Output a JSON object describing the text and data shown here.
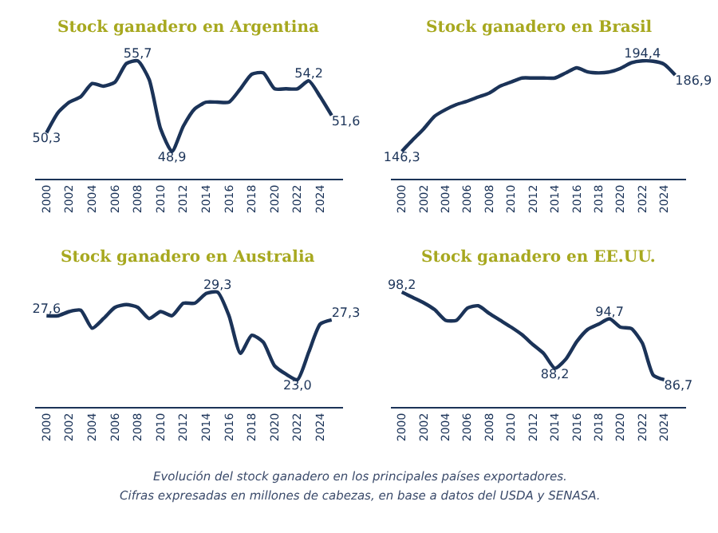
{
  "chart_data": [
    {
      "type": "line",
      "title": "Stock ganadero en Argentina",
      "annotations": [
        "Evolución del stock ganadero en los principales países exportadores.",
        "Cifras expresadas en millones de cabezas, en base a datos del USDA y SENASA."
      ],
      "xlim": [
        1999,
        2026
      ],
      "xticks": [
        2000,
        2002,
        2004,
        2006,
        2008,
        2010,
        2012,
        2014,
        2016,
        2018,
        2020,
        2022,
        2024
      ],
      "tick_labels": "x",
      "marker": "none",
      "line_style": "solid",
      "series": [
        {
          "color": "#1b3358",
          "x": [
            2000,
            2001,
            2002,
            2003,
            2004,
            2005,
            2006,
            2007,
            2008,
            2009,
            2010,
            2011,
            2012,
            2013,
            2014,
            2015,
            2016,
            2017,
            2018,
            2019,
            2020,
            2021,
            2022,
            2023,
            2024,
            2025
          ],
          "values": [
            50.3,
            51.8,
            52.6,
            53.0,
            54.0,
            53.8,
            54.1,
            55.5,
            55.7,
            54.3,
            50.6,
            48.9,
            50.8,
            52.1,
            52.6,
            52.6,
            52.6,
            53.6,
            54.7,
            54.8,
            53.6,
            53.6,
            53.6,
            54.2,
            53.0,
            51.6
          ],
          "value_labels": [
            "50,3",
            null,
            null,
            null,
            null,
            null,
            null,
            null,
            "55,7",
            null,
            null,
            "48,9",
            null,
            null,
            null,
            null,
            null,
            null,
            null,
            null,
            null,
            null,
            null,
            "54,2",
            null,
            "51,6"
          ]
        }
      ]
    },
    {
      "type": "line",
      "title": "Stock ganadero en Brasil",
      "xlim": [
        1999,
        2026
      ],
      "xticks": [
        2000,
        2002,
        2004,
        2006,
        2008,
        2010,
        2012,
        2014,
        2016,
        2018,
        2020,
        2022,
        2024
      ],
      "tick_labels": "x",
      "marker": "none",
      "line_style": "solid",
      "series": [
        {
          "color": "#1b3358",
          "x": [
            2000,
            2001,
            2002,
            2003,
            2004,
            2005,
            2006,
            2007,
            2008,
            2009,
            2010,
            2011,
            2012,
            2013,
            2014,
            2015,
            2016,
            2017,
            2018,
            2019,
            2020,
            2021,
            2022,
            2023,
            2024,
            2025
          ],
          "values": [
            146.3,
            152.4,
            158.3,
            165.0,
            168.5,
            171.2,
            173.0,
            175.2,
            177.3,
            181.0,
            183.2,
            185.3,
            185.3,
            185.3,
            185.3,
            188.0,
            190.7,
            188.5,
            188.0,
            188.5,
            190.4,
            193.4,
            194.4,
            194.2,
            192.6,
            186.9
          ],
          "value_labels": [
            "146,3",
            null,
            null,
            null,
            null,
            null,
            null,
            null,
            null,
            null,
            null,
            null,
            null,
            null,
            null,
            null,
            null,
            null,
            null,
            null,
            null,
            null,
            "194,4",
            null,
            null,
            "186,9"
          ]
        }
      ]
    },
    {
      "type": "line",
      "title": "Stock ganadero en Australia",
      "xlim": [
        1999,
        2026
      ],
      "xticks": [
        2000,
        2002,
        2004,
        2006,
        2008,
        2010,
        2012,
        2014,
        2016,
        2018,
        2020,
        2022,
        2024
      ],
      "tick_labels": "x",
      "marker": "none",
      "line_style": "solid",
      "series": [
        {
          "color": "#1b3358",
          "x": [
            2000,
            2001,
            2002,
            2003,
            2004,
            2005,
            2006,
            2007,
            2008,
            2009,
            2010,
            2011,
            2012,
            2013,
            2014,
            2015,
            2016,
            2017,
            2018,
            2019,
            2020,
            2021,
            2022,
            2023,
            2024,
            2025
          ],
          "values": [
            27.6,
            27.6,
            27.9,
            28.0,
            26.7,
            27.4,
            28.2,
            28.4,
            28.2,
            27.4,
            27.9,
            27.6,
            28.5,
            28.5,
            29.2,
            29.3,
            27.6,
            24.9,
            26.2,
            25.7,
            24.0,
            23.4,
            23.0,
            25.0,
            27.0,
            27.3
          ],
          "value_labels": [
            "27,6",
            null,
            null,
            null,
            null,
            null,
            null,
            null,
            null,
            null,
            null,
            null,
            null,
            null,
            null,
            "29,3",
            null,
            null,
            null,
            null,
            null,
            null,
            "23,0",
            null,
            null,
            "27,3"
          ]
        }
      ]
    },
    {
      "type": "line",
      "title": "Stock ganadero en EE.UU.",
      "xlim": [
        1999,
        2026
      ],
      "xticks": [
        2000,
        2002,
        2004,
        2006,
        2008,
        2010,
        2012,
        2014,
        2016,
        2018,
        2020,
        2022,
        2024
      ],
      "tick_labels": "x",
      "marker": "none",
      "line_style": "solid",
      "series": [
        {
          "color": "#1b3358",
          "x": [
            2000,
            2001,
            2002,
            2003,
            2004,
            2005,
            2006,
            2007,
            2008,
            2009,
            2010,
            2011,
            2012,
            2013,
            2014,
            2015,
            2016,
            2017,
            2018,
            2019,
            2020,
            2021,
            2022,
            2023,
            2024
          ],
          "values": [
            98.2,
            97.5,
            96.8,
            95.9,
            94.5,
            94.5,
            96.1,
            96.4,
            95.4,
            94.5,
            93.6,
            92.6,
            91.3,
            90.1,
            88.2,
            89.4,
            91.7,
            93.3,
            94.0,
            94.7,
            93.6,
            93.4,
            91.5,
            87.3,
            86.7
          ],
          "value_labels": [
            "98,2",
            null,
            null,
            null,
            null,
            null,
            null,
            null,
            null,
            null,
            null,
            null,
            null,
            null,
            "88,2",
            null,
            null,
            null,
            null,
            "94,7",
            null,
            null,
            null,
            null,
            "86,7"
          ]
        }
      ]
    }
  ]
}
